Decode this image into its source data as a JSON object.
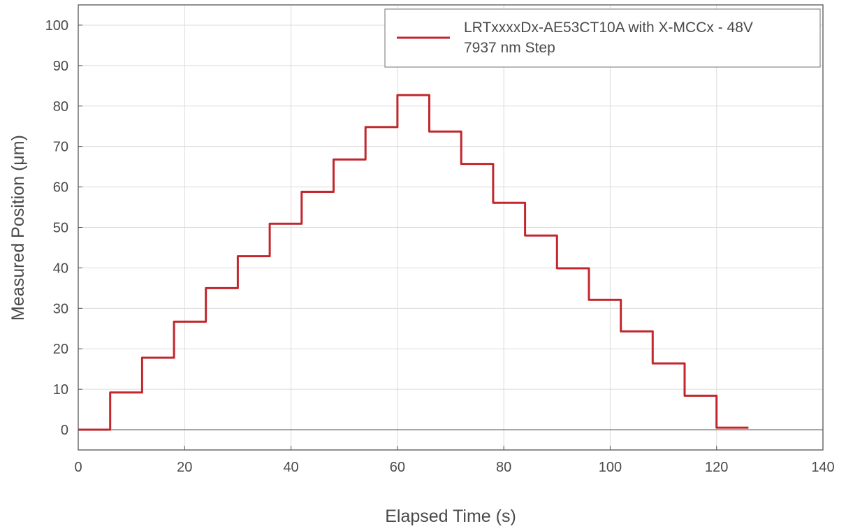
{
  "chart_data": {
    "type": "line",
    "title": "",
    "xlabel": "Elapsed Time (s)",
    "ylabel": "Measured Position (μm)",
    "xlim": [
      0,
      140
    ],
    "ylim": [
      -5,
      105
    ],
    "x_ticks": [
      "0",
      "20",
      "40",
      "60",
      "80",
      "100",
      "120",
      "140"
    ],
    "y_ticks": [
      "0",
      "10",
      "20",
      "30",
      "40",
      "50",
      "60",
      "70",
      "80",
      "90",
      "100"
    ],
    "grid": true,
    "legend_position": "top-right",
    "legend": {
      "line1": "LRTxxxxDx-AE53CT10A with X-MCCx - 48V",
      "line2": "7937 nm Step"
    },
    "series": [
      {
        "name": "LRTxxxxDx-AE53CT10A with X-MCCx - 48V 7937 nm Step",
        "color": "#c1272d",
        "steps": [
          {
            "x_start": 0,
            "x_end": 6,
            "y": 0
          },
          {
            "x_start": 6,
            "x_end": 12,
            "y": 9.2
          },
          {
            "x_start": 12,
            "x_end": 18,
            "y": 17.8
          },
          {
            "x_start": 18,
            "x_end": 24,
            "y": 26.7
          },
          {
            "x_start": 24,
            "x_end": 30,
            "y": 35.0
          },
          {
            "x_start": 30,
            "x_end": 36,
            "y": 42.9
          },
          {
            "x_start": 36,
            "x_end": 42,
            "y": 50.9
          },
          {
            "x_start": 42,
            "x_end": 48,
            "y": 58.8
          },
          {
            "x_start": 48,
            "x_end": 54,
            "y": 66.8
          },
          {
            "x_start": 54,
            "x_end": 60,
            "y": 74.8
          },
          {
            "x_start": 60,
            "x_end": 66,
            "y": 82.7
          },
          {
            "x_start": 66,
            "x_end": 72,
            "y": 73.7
          },
          {
            "x_start": 72,
            "x_end": 78,
            "y": 65.7
          },
          {
            "x_start": 78,
            "x_end": 84,
            "y": 56.1
          },
          {
            "x_start": 84,
            "x_end": 90,
            "y": 48.0
          },
          {
            "x_start": 90,
            "x_end": 96,
            "y": 39.9
          },
          {
            "x_start": 96,
            "x_end": 102,
            "y": 32.1
          },
          {
            "x_start": 102,
            "x_end": 108,
            "y": 24.3
          },
          {
            "x_start": 108,
            "x_end": 114,
            "y": 16.4
          },
          {
            "x_start": 114,
            "x_end": 120,
            "y": 8.4
          },
          {
            "x_start": 120,
            "x_end": 126,
            "y": 0.5
          }
        ]
      }
    ]
  }
}
